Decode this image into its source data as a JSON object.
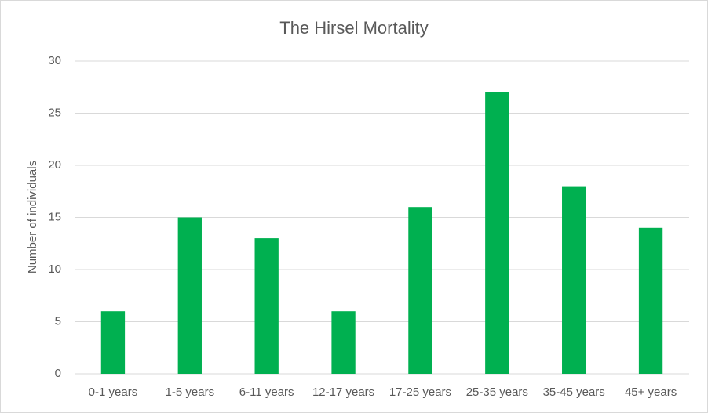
{
  "chart_data": {
    "type": "bar",
    "title": "The Hirsel Mortality",
    "y_label": "Number of individuals",
    "categories": [
      "0-1 years",
      "1-5 years",
      "6-11 years",
      "12-17 years",
      "17-25 years",
      "25-35 years",
      "35-45 years",
      "45+ years"
    ],
    "values": [
      6,
      15,
      13,
      6,
      16,
      27,
      18,
      14
    ],
    "color": "#00b050",
    "ylim": [
      0,
      30
    ],
    "yticks": [
      0,
      5,
      10,
      15,
      20,
      25,
      30
    ],
    "grid": true
  }
}
